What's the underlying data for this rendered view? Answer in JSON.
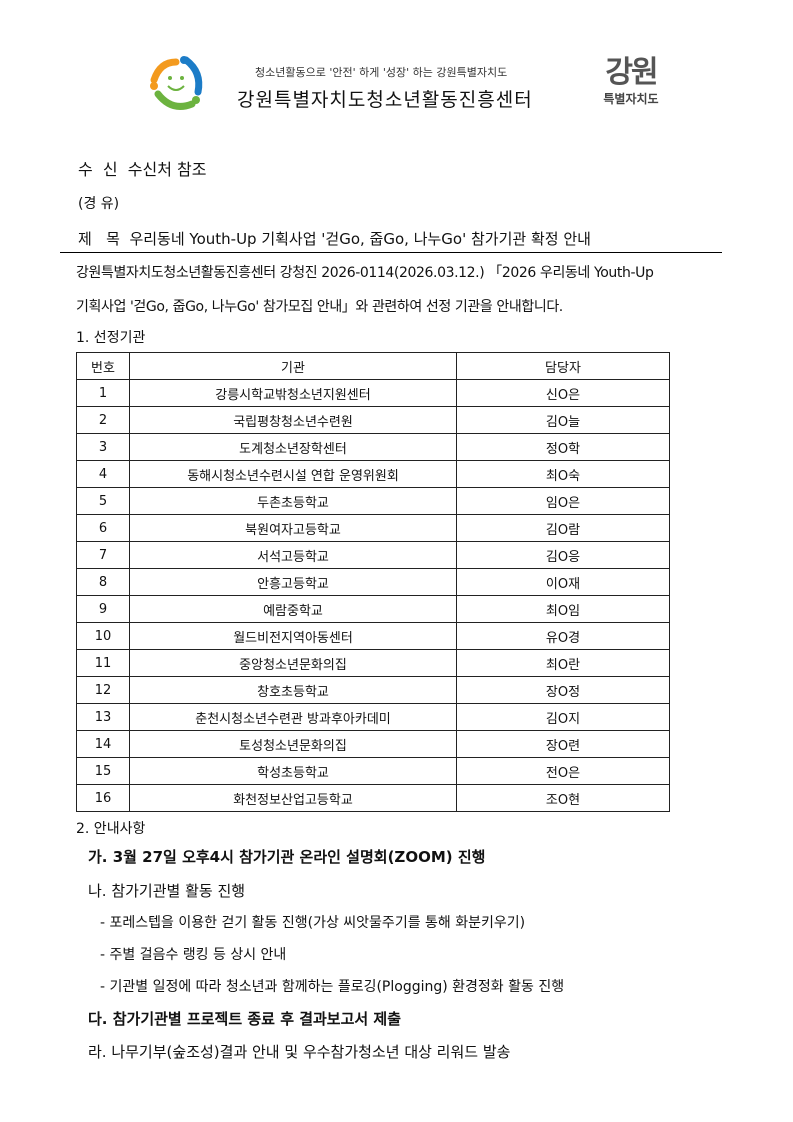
{
  "header": {
    "slogan": "청소년활동으로 '안전' 하게 '성장' 하는 강원특별자치도",
    "org_name": "강원특별자치도청소년활동진흥센터",
    "logo_right_main": "강원",
    "logo_right_sub": "특별자치도"
  },
  "memo": {
    "recipient": "수  신  수신처 참조",
    "via": "(경 유)",
    "subject": "제   목  우리동네 Youth-Up 기획사업 '걷Go, 줍Go, 나누Go' 참가기관 확정 안내"
  },
  "body": {
    "intro_line1": "강원특별자치도청소년활동진흥센터 강청진 2026-0114(2026.03.12.) 「2026 우리동네 Youth-Up",
    "intro_line2": "기획사업 '걷Go, 줍Go, 나누Go' 참가모집 안내」와 관련하여 선정 기관을 안내합니다.",
    "section1": "1. 선정기관",
    "section2": "2. 안내사항"
  },
  "table": {
    "headers": [
      "번호",
      "기관",
      "담당자"
    ],
    "rows": [
      [
        "1",
        "강릉시학교밖청소년지원센터",
        "신O은"
      ],
      [
        "2",
        "국립평창청소년수련원",
        "김O늘"
      ],
      [
        "3",
        "도계청소년장학센터",
        "정O학"
      ],
      [
        "4",
        "동해시청소년수련시설 연합 운영위원회",
        "최O숙"
      ],
      [
        "5",
        "두촌초등학교",
        "임O은"
      ],
      [
        "6",
        "북원여자고등학교",
        "김O람"
      ],
      [
        "7",
        "서석고등학교",
        "김O응"
      ],
      [
        "8",
        "안흥고등학교",
        "이O재"
      ],
      [
        "9",
        "예람중학교",
        "최O임"
      ],
      [
        "10",
        "월드비전지역아동센터",
        "유O경"
      ],
      [
        "11",
        "중앙청소년문화의집",
        "최O란"
      ],
      [
        "12",
        "창호초등학교",
        "장O정"
      ],
      [
        "13",
        "춘천시청소년수련관 방과후아카데미",
        "김O지"
      ],
      [
        "14",
        "토성청소년문화의집",
        "장O련"
      ],
      [
        "15",
        "학성초등학교",
        "전O은"
      ],
      [
        "16",
        "화천정보산업고등학교",
        "조O현"
      ]
    ]
  },
  "notices": [
    {
      "text": "가. 3월 27일 오후4시 참가기관 온라인 설명회(ZOOM) 진행",
      "bold": true
    },
    {
      "text": "나. 참가기관별 활동 진행",
      "bold": false
    },
    {
      "text": "- 포레스텝을 이용한 걷기 활동 진행(가상 씨앗물주기를 통해 화분키우기)",
      "bold": false
    },
    {
      "text": "- 주별 걸음수 랭킹 등 상시 안내",
      "bold": false
    },
    {
      "text": "- 기관별 일정에 따라 청소년과 함께하는 플로깅(Plogging) 환경정화 활동 진행",
      "bold": false
    },
    {
      "text": "다. 참가기관별 프로젝트 종료 후 결과보고서 제출",
      "bold": true
    },
    {
      "text": "라. 나무기부(숲조성)결과 안내 및 우수참가청소년 대상 리워드 발송",
      "bold": false
    }
  ]
}
